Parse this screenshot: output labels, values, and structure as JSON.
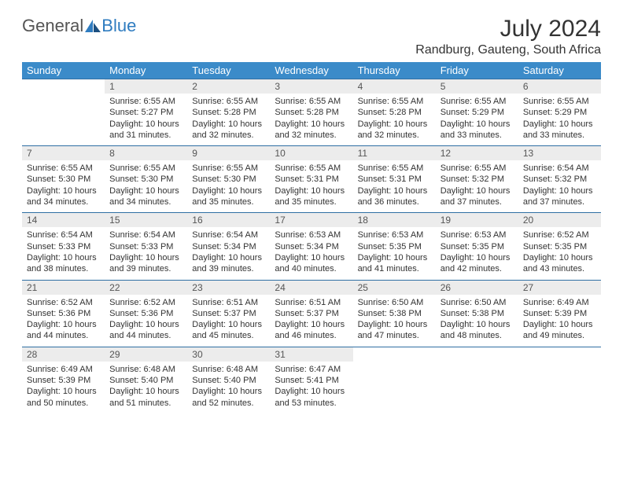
{
  "brand": {
    "part1": "General",
    "part2": "Blue"
  },
  "title": "July 2024",
  "location": "Randburg, Gauteng, South Africa",
  "colors": {
    "header_bg": "#3b8bc9",
    "header_text": "#ffffff",
    "daynum_bg": "#ececec",
    "rule": "#2f6fa3",
    "brand_blue": "#2f7cc0"
  },
  "weekdays": [
    "Sunday",
    "Monday",
    "Tuesday",
    "Wednesday",
    "Thursday",
    "Friday",
    "Saturday"
  ],
  "weeks": [
    {
      "nums": [
        "",
        "1",
        "2",
        "3",
        "4",
        "5",
        "6"
      ],
      "cells": [
        null,
        {
          "sunrise": "Sunrise: 6:55 AM",
          "sunset": "Sunset: 5:27 PM",
          "day1": "Daylight: 10 hours",
          "day2": "and 31 minutes."
        },
        {
          "sunrise": "Sunrise: 6:55 AM",
          "sunset": "Sunset: 5:28 PM",
          "day1": "Daylight: 10 hours",
          "day2": "and 32 minutes."
        },
        {
          "sunrise": "Sunrise: 6:55 AM",
          "sunset": "Sunset: 5:28 PM",
          "day1": "Daylight: 10 hours",
          "day2": "and 32 minutes."
        },
        {
          "sunrise": "Sunrise: 6:55 AM",
          "sunset": "Sunset: 5:28 PM",
          "day1": "Daylight: 10 hours",
          "day2": "and 32 minutes."
        },
        {
          "sunrise": "Sunrise: 6:55 AM",
          "sunset": "Sunset: 5:29 PM",
          "day1": "Daylight: 10 hours",
          "day2": "and 33 minutes."
        },
        {
          "sunrise": "Sunrise: 6:55 AM",
          "sunset": "Sunset: 5:29 PM",
          "day1": "Daylight: 10 hours",
          "day2": "and 33 minutes."
        }
      ]
    },
    {
      "nums": [
        "7",
        "8",
        "9",
        "10",
        "11",
        "12",
        "13"
      ],
      "cells": [
        {
          "sunrise": "Sunrise: 6:55 AM",
          "sunset": "Sunset: 5:30 PM",
          "day1": "Daylight: 10 hours",
          "day2": "and 34 minutes."
        },
        {
          "sunrise": "Sunrise: 6:55 AM",
          "sunset": "Sunset: 5:30 PM",
          "day1": "Daylight: 10 hours",
          "day2": "and 34 minutes."
        },
        {
          "sunrise": "Sunrise: 6:55 AM",
          "sunset": "Sunset: 5:30 PM",
          "day1": "Daylight: 10 hours",
          "day2": "and 35 minutes."
        },
        {
          "sunrise": "Sunrise: 6:55 AM",
          "sunset": "Sunset: 5:31 PM",
          "day1": "Daylight: 10 hours",
          "day2": "and 35 minutes."
        },
        {
          "sunrise": "Sunrise: 6:55 AM",
          "sunset": "Sunset: 5:31 PM",
          "day1": "Daylight: 10 hours",
          "day2": "and 36 minutes."
        },
        {
          "sunrise": "Sunrise: 6:55 AM",
          "sunset": "Sunset: 5:32 PM",
          "day1": "Daylight: 10 hours",
          "day2": "and 37 minutes."
        },
        {
          "sunrise": "Sunrise: 6:54 AM",
          "sunset": "Sunset: 5:32 PM",
          "day1": "Daylight: 10 hours",
          "day2": "and 37 minutes."
        }
      ]
    },
    {
      "nums": [
        "14",
        "15",
        "16",
        "17",
        "18",
        "19",
        "20"
      ],
      "cells": [
        {
          "sunrise": "Sunrise: 6:54 AM",
          "sunset": "Sunset: 5:33 PM",
          "day1": "Daylight: 10 hours",
          "day2": "and 38 minutes."
        },
        {
          "sunrise": "Sunrise: 6:54 AM",
          "sunset": "Sunset: 5:33 PM",
          "day1": "Daylight: 10 hours",
          "day2": "and 39 minutes."
        },
        {
          "sunrise": "Sunrise: 6:54 AM",
          "sunset": "Sunset: 5:34 PM",
          "day1": "Daylight: 10 hours",
          "day2": "and 39 minutes."
        },
        {
          "sunrise": "Sunrise: 6:53 AM",
          "sunset": "Sunset: 5:34 PM",
          "day1": "Daylight: 10 hours",
          "day2": "and 40 minutes."
        },
        {
          "sunrise": "Sunrise: 6:53 AM",
          "sunset": "Sunset: 5:35 PM",
          "day1": "Daylight: 10 hours",
          "day2": "and 41 minutes."
        },
        {
          "sunrise": "Sunrise: 6:53 AM",
          "sunset": "Sunset: 5:35 PM",
          "day1": "Daylight: 10 hours",
          "day2": "and 42 minutes."
        },
        {
          "sunrise": "Sunrise: 6:52 AM",
          "sunset": "Sunset: 5:35 PM",
          "day1": "Daylight: 10 hours",
          "day2": "and 43 minutes."
        }
      ]
    },
    {
      "nums": [
        "21",
        "22",
        "23",
        "24",
        "25",
        "26",
        "27"
      ],
      "cells": [
        {
          "sunrise": "Sunrise: 6:52 AM",
          "sunset": "Sunset: 5:36 PM",
          "day1": "Daylight: 10 hours",
          "day2": "and 44 minutes."
        },
        {
          "sunrise": "Sunrise: 6:52 AM",
          "sunset": "Sunset: 5:36 PM",
          "day1": "Daylight: 10 hours",
          "day2": "and 44 minutes."
        },
        {
          "sunrise": "Sunrise: 6:51 AM",
          "sunset": "Sunset: 5:37 PM",
          "day1": "Daylight: 10 hours",
          "day2": "and 45 minutes."
        },
        {
          "sunrise": "Sunrise: 6:51 AM",
          "sunset": "Sunset: 5:37 PM",
          "day1": "Daylight: 10 hours",
          "day2": "and 46 minutes."
        },
        {
          "sunrise": "Sunrise: 6:50 AM",
          "sunset": "Sunset: 5:38 PM",
          "day1": "Daylight: 10 hours",
          "day2": "and 47 minutes."
        },
        {
          "sunrise": "Sunrise: 6:50 AM",
          "sunset": "Sunset: 5:38 PM",
          "day1": "Daylight: 10 hours",
          "day2": "and 48 minutes."
        },
        {
          "sunrise": "Sunrise: 6:49 AM",
          "sunset": "Sunset: 5:39 PM",
          "day1": "Daylight: 10 hours",
          "day2": "and 49 minutes."
        }
      ]
    },
    {
      "nums": [
        "28",
        "29",
        "30",
        "31",
        "",
        "",
        ""
      ],
      "cells": [
        {
          "sunrise": "Sunrise: 6:49 AM",
          "sunset": "Sunset: 5:39 PM",
          "day1": "Daylight: 10 hours",
          "day2": "and 50 minutes."
        },
        {
          "sunrise": "Sunrise: 6:48 AM",
          "sunset": "Sunset: 5:40 PM",
          "day1": "Daylight: 10 hours",
          "day2": "and 51 minutes."
        },
        {
          "sunrise": "Sunrise: 6:48 AM",
          "sunset": "Sunset: 5:40 PM",
          "day1": "Daylight: 10 hours",
          "day2": "and 52 minutes."
        },
        {
          "sunrise": "Sunrise: 6:47 AM",
          "sunset": "Sunset: 5:41 PM",
          "day1": "Daylight: 10 hours",
          "day2": "and 53 minutes."
        },
        null,
        null,
        null
      ]
    }
  ]
}
